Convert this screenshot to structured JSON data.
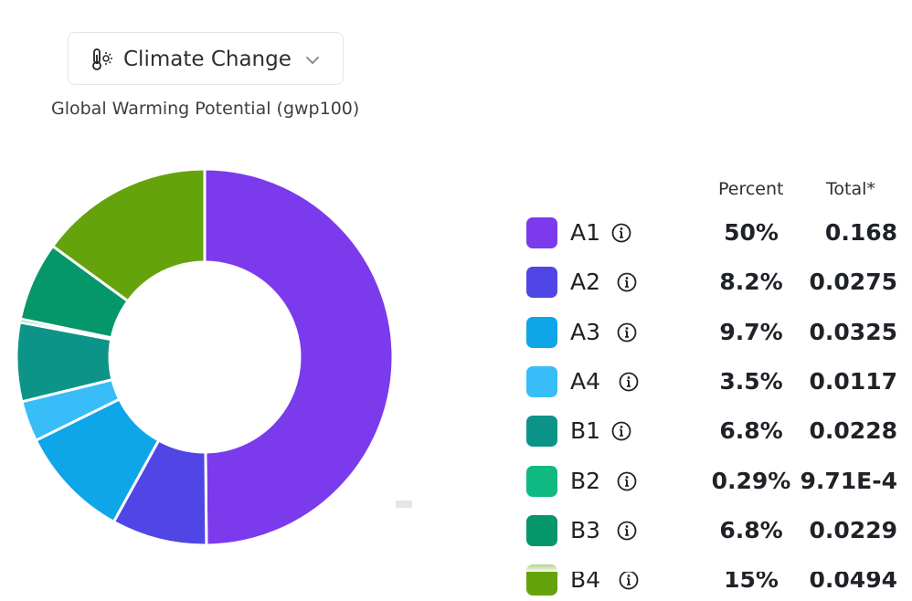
{
  "selector": {
    "label": "Climate Change",
    "icon": "thermometer-sun-icon"
  },
  "subtitle": "Global Warming Potential (gwp100)",
  "legend": {
    "percent_header": "Percent",
    "total_header": "Total*"
  },
  "chart_data": {
    "type": "pie",
    "title": "Global Warming Potential (gwp100)",
    "donut": true,
    "slices": [
      {
        "label": "A1",
        "percent": 50,
        "percent_label": "50%",
        "total": "0.168",
        "color": "#7c3aed"
      },
      {
        "label": "A2",
        "percent": 8.2,
        "percent_label": "8.2%",
        "total": "0.0275",
        "color": "#4f46e5"
      },
      {
        "label": "A3",
        "percent": 9.7,
        "percent_label": "9.7%",
        "total": "0.0325",
        "color": "#0ea5e9"
      },
      {
        "label": "A4",
        "percent": 3.5,
        "percent_label": "3.5%",
        "total": "0.0117",
        "color": "#38bdf8"
      },
      {
        "label": "B1",
        "percent": 6.8,
        "percent_label": "6.8%",
        "total": "0.0228",
        "color": "#0d9488"
      },
      {
        "label": "B2",
        "percent": 0.29,
        "percent_label": "0.29%",
        "total": "9.71E-4",
        "color": "#10b981"
      },
      {
        "label": "B3",
        "percent": 6.8,
        "percent_label": "6.8%",
        "total": "0.0229",
        "color": "#059669"
      },
      {
        "label": "B4",
        "percent": 15,
        "percent_label": "15%",
        "total": "0.0494",
        "color": "#65a30d"
      }
    ]
  }
}
